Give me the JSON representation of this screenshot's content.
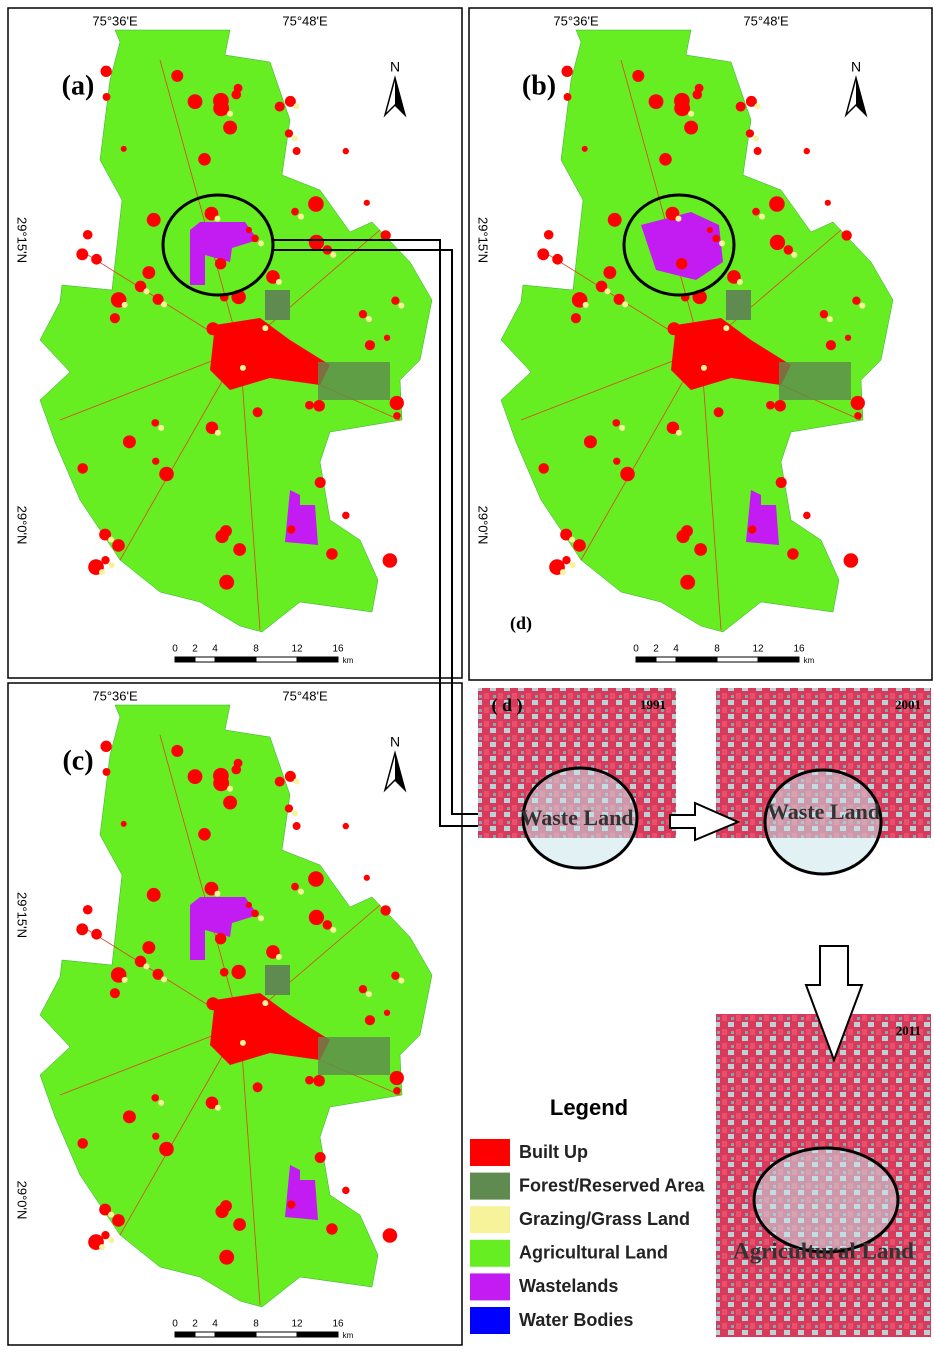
{
  "panels": [
    {
      "label": "(a)",
      "x_labels": [
        "75°36'E",
        "75°48'E"
      ],
      "y_labels": [
        "29°15'N",
        "29°0'N"
      ],
      "north": "N",
      "scale": {
        "ticks": [
          "0",
          "2",
          "4",
          "8",
          "12",
          "16"
        ],
        "unit": "km"
      }
    },
    {
      "label": "(b)",
      "note": "(d)",
      "x_labels": [
        "75°36'E",
        "75°48'E"
      ],
      "y_labels": [
        "29°15'N",
        "29°0'N"
      ],
      "north": "N",
      "scale": {
        "ticks": [
          "0",
          "2",
          "4",
          "8",
          "12",
          "16"
        ],
        "unit": "km"
      }
    },
    {
      "label": "(c)",
      "x_labels": [
        "75°36'E",
        "75°48'E"
      ],
      "y_labels": [
        "29°15'N",
        "29°0'N"
      ],
      "north": "N",
      "scale": {
        "ticks": [
          "0",
          "2",
          "4",
          "8",
          "12",
          "16"
        ],
        "unit": "km"
      }
    }
  ],
  "insets": {
    "label": "( d )",
    "images": [
      {
        "year": "1991",
        "caption": "Waste Land"
      },
      {
        "year": "2001",
        "caption": "Waste Land"
      },
      {
        "year": "2011",
        "caption": "Agricultural Land"
      }
    ]
  },
  "legend": {
    "title": "Legend",
    "items": [
      {
        "label": "Built Up",
        "color": "#ff0000"
      },
      {
        "label": "Forest/Reserved Area",
        "color": "#5f8a50"
      },
      {
        "label": "Grazing/Grass Land",
        "color": "#f6f39a"
      },
      {
        "label": "Agricultural Land",
        "color": "#66ee22"
      },
      {
        "label": "Wastelands",
        "color": "#c21cf2"
      },
      {
        "label": "Water Bodies",
        "color": "#0000ff"
      }
    ]
  }
}
